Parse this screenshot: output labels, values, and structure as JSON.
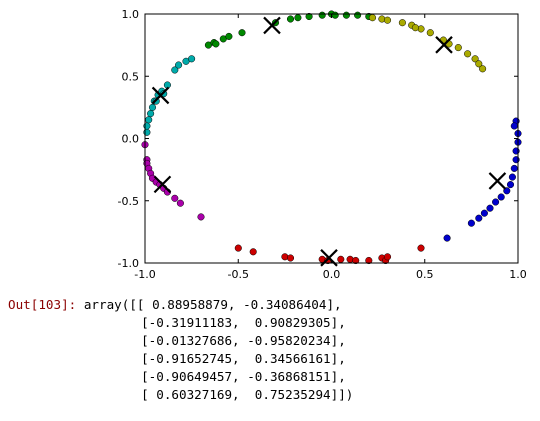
{
  "chart_data": {
    "type": "scatter",
    "xlim": [
      -1.0,
      1.0
    ],
    "ylim": [
      -1.0,
      1.0
    ],
    "xticks": [
      "-1.0",
      "-0.5",
      "0.0",
      "0.5",
      "1.0"
    ],
    "yticks": [
      "1.0",
      "0.5",
      "0.0",
      "-0.5",
      "-1.0"
    ],
    "grid": false,
    "series": [
      {
        "color": "#0000cc",
        "points": [
          [
            0.99,
            0.14
          ],
          [
            1.0,
            0.04
          ],
          [
            1.0,
            -0.03
          ],
          [
            0.99,
            -0.1
          ],
          [
            0.99,
            -0.17
          ],
          [
            0.98,
            -0.24
          ],
          [
            0.97,
            -0.31
          ],
          [
            0.96,
            -0.37
          ],
          [
            0.94,
            -0.42
          ],
          [
            0.91,
            -0.47
          ],
          [
            0.88,
            -0.51
          ],
          [
            0.85,
            -0.56
          ],
          [
            0.82,
            -0.6
          ],
          [
            0.79,
            -0.64
          ],
          [
            0.75,
            -0.68
          ],
          [
            0.62,
            -0.8
          ],
          [
            0.98,
            0.1
          ]
        ]
      },
      {
        "color": "#00aaaa",
        "points": [
          [
            -0.99,
            0.05
          ],
          [
            -0.99,
            0.1
          ],
          [
            -0.98,
            0.15
          ],
          [
            -0.97,
            0.2
          ],
          [
            -0.96,
            0.25
          ],
          [
            -0.95,
            0.3
          ],
          [
            -0.93,
            0.35
          ],
          [
            -0.91,
            0.38
          ],
          [
            -0.88,
            0.43
          ],
          [
            -0.84,
            0.55
          ],
          [
            -0.82,
            0.59
          ],
          [
            -0.78,
            0.62
          ],
          [
            -0.75,
            0.64
          ],
          [
            -0.94,
            0.3
          ],
          [
            -0.9,
            0.36
          ]
        ]
      },
      {
        "color": "#008800",
        "points": [
          [
            -0.66,
            0.75
          ],
          [
            -0.63,
            0.77
          ],
          [
            -0.58,
            0.8
          ],
          [
            -0.55,
            0.82
          ],
          [
            -0.48,
            0.85
          ],
          [
            -0.3,
            0.93
          ],
          [
            -0.22,
            0.96
          ],
          [
            -0.12,
            0.98
          ],
          [
            -0.05,
            0.99
          ],
          [
            0.0,
            1.0
          ],
          [
            0.08,
            0.99
          ],
          [
            0.14,
            0.99
          ],
          [
            0.2,
            0.98
          ],
          [
            -0.18,
            0.97
          ],
          [
            0.02,
            0.99
          ],
          [
            -0.62,
            0.76
          ]
        ]
      },
      {
        "color": "#aaaa00",
        "points": [
          [
            0.22,
            0.97
          ],
          [
            0.27,
            0.96
          ],
          [
            0.3,
            0.95
          ],
          [
            0.38,
            0.93
          ],
          [
            0.43,
            0.91
          ],
          [
            0.48,
            0.88
          ],
          [
            0.53,
            0.85
          ],
          [
            0.6,
            0.79
          ],
          [
            0.63,
            0.76
          ],
          [
            0.68,
            0.73
          ],
          [
            0.73,
            0.68
          ],
          [
            0.77,
            0.64
          ],
          [
            0.81,
            0.56
          ],
          [
            0.79,
            0.6
          ],
          [
            0.45,
            0.89
          ]
        ]
      },
      {
        "color": "#aa00aa",
        "points": [
          [
            -1.0,
            -0.05
          ],
          [
            -0.99,
            -0.17
          ],
          [
            -0.99,
            -0.2
          ],
          [
            -0.98,
            -0.24
          ],
          [
            -0.97,
            -0.28
          ],
          [
            -0.96,
            -0.32
          ],
          [
            -0.94,
            -0.35
          ],
          [
            -0.92,
            -0.37
          ],
          [
            -0.9,
            -0.4
          ],
          [
            -0.88,
            -0.43
          ],
          [
            -0.84,
            -0.48
          ],
          [
            -0.81,
            -0.52
          ],
          [
            -0.7,
            -0.63
          ]
        ]
      },
      {
        "color": "#cc0000",
        "points": [
          [
            -0.5,
            -0.88
          ],
          [
            -0.42,
            -0.91
          ],
          [
            -0.25,
            -0.95
          ],
          [
            -0.05,
            -0.97
          ],
          [
            -0.02,
            -0.98
          ],
          [
            0.05,
            -0.97
          ],
          [
            0.1,
            -0.97
          ],
          [
            0.13,
            -0.98
          ],
          [
            0.2,
            -0.98
          ],
          [
            0.27,
            -0.96
          ],
          [
            0.29,
            -0.98
          ],
          [
            0.48,
            -0.88
          ],
          [
            -0.22,
            -0.96
          ],
          [
            0.3,
            -0.95
          ]
        ]
      }
    ],
    "centers": [
      [
        0.88958879,
        -0.34086404
      ],
      [
        -0.31911183,
        0.90829305
      ],
      [
        -0.01327686,
        -0.95820234
      ],
      [
        -0.91652745,
        0.34566161
      ],
      [
        -0.90649457,
        -0.36868151
      ],
      [
        0.60327169,
        0.75235294
      ]
    ]
  },
  "output": {
    "prompt": "Out[103]:",
    "lines": [
      "array([[ 0.88958879, -0.34086404],",
      "       [-0.31911183,  0.90829305],",
      "       [-0.01327686, -0.95820234],",
      "       [-0.91652745,  0.34566161],",
      "       [-0.90649457, -0.36868151],",
      "       [ 0.60327169,  0.75235294]])"
    ]
  }
}
